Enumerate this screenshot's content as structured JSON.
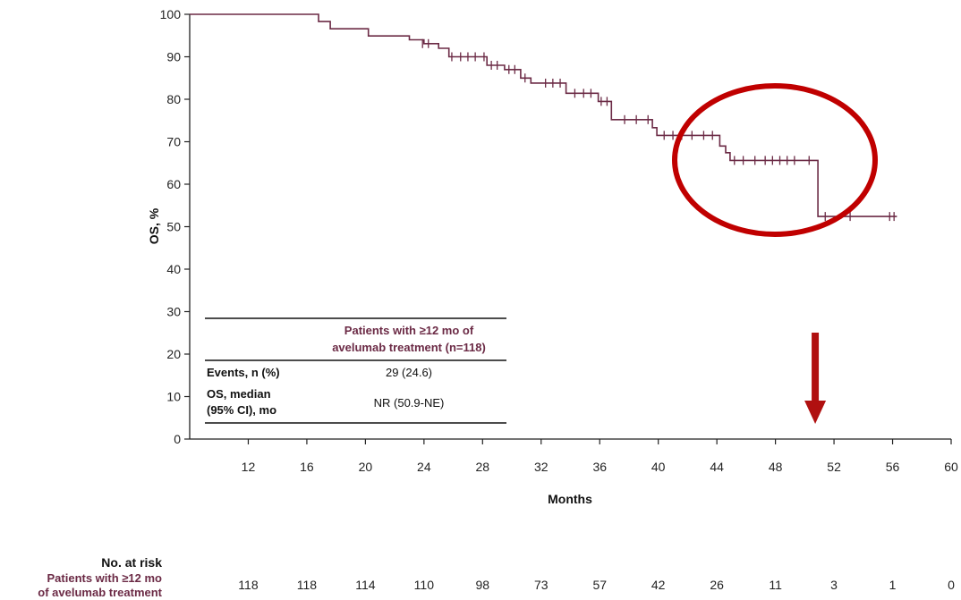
{
  "chart_data": {
    "type": "line",
    "xlabel": "Months",
    "ylabel": "OS, %",
    "xlim": [
      8,
      60
    ],
    "ylim": [
      0,
      100
    ],
    "x_ticks": [
      12,
      16,
      20,
      24,
      28,
      32,
      36,
      40,
      44,
      48,
      52,
      56,
      60
    ],
    "y_ticks": [
      0,
      10,
      20,
      30,
      40,
      50,
      60,
      70,
      80,
      90,
      100
    ],
    "grid": false,
    "series": [
      {
        "name": "Patients with ≥12 mo of avelumab treatment (n=118)",
        "color": "#6b2a45",
        "steps": [
          [
            8,
            100
          ],
          [
            16.8,
            100
          ],
          [
            16.8,
            98.3
          ],
          [
            17.6,
            98.3
          ],
          [
            17.6,
            96.6
          ],
          [
            20.2,
            96.6
          ],
          [
            20.2,
            94.9
          ],
          [
            23.0,
            94.9
          ],
          [
            23.0,
            94.0
          ],
          [
            24.0,
            94.0
          ],
          [
            24.0,
            93.1
          ],
          [
            25.0,
            93.1
          ],
          [
            25.0,
            92.0
          ],
          [
            25.7,
            92.0
          ],
          [
            25.7,
            90.0
          ],
          [
            28.3,
            90.0
          ],
          [
            28.3,
            88.0
          ],
          [
            29.5,
            88.0
          ],
          [
            29.5,
            87.0
          ],
          [
            30.6,
            87.0
          ],
          [
            30.6,
            85.0
          ],
          [
            31.3,
            85.0
          ],
          [
            31.3,
            83.8
          ],
          [
            33.7,
            83.8
          ],
          [
            33.7,
            81.4
          ],
          [
            35.9,
            81.4
          ],
          [
            35.9,
            79.5
          ],
          [
            36.8,
            79.5
          ],
          [
            36.8,
            75.2
          ],
          [
            39.6,
            75.2
          ],
          [
            39.6,
            73.3
          ],
          [
            39.9,
            73.3
          ],
          [
            39.9,
            71.5
          ],
          [
            44.2,
            71.5
          ],
          [
            44.2,
            69.0
          ],
          [
            44.6,
            69.0
          ],
          [
            44.6,
            67.4
          ],
          [
            44.9,
            67.4
          ],
          [
            44.9,
            65.6
          ],
          [
            50.9,
            65.6
          ],
          [
            50.9,
            52.4
          ],
          [
            56.3,
            52.4
          ]
        ],
        "censored": [
          [
            23.9,
            93.1
          ],
          [
            24.3,
            93.1
          ],
          [
            25.9,
            90.0
          ],
          [
            26.5,
            90.0
          ],
          [
            27.0,
            90.0
          ],
          [
            27.5,
            90.0
          ],
          [
            28.1,
            90.0
          ],
          [
            28.6,
            88.0
          ],
          [
            29.0,
            88.0
          ],
          [
            29.8,
            87.0
          ],
          [
            30.2,
            87.0
          ],
          [
            30.9,
            85.0
          ],
          [
            32.3,
            83.8
          ],
          [
            32.8,
            83.8
          ],
          [
            33.3,
            83.8
          ],
          [
            34.3,
            81.4
          ],
          [
            34.9,
            81.4
          ],
          [
            35.4,
            81.4
          ],
          [
            36.1,
            79.5
          ],
          [
            36.5,
            79.5
          ],
          [
            37.7,
            75.2
          ],
          [
            38.5,
            75.2
          ],
          [
            39.3,
            75.2
          ],
          [
            40.4,
            71.5
          ],
          [
            41.0,
            71.5
          ],
          [
            41.6,
            71.5
          ],
          [
            42.3,
            71.5
          ],
          [
            43.1,
            71.5
          ],
          [
            43.7,
            71.5
          ],
          [
            45.2,
            65.6
          ],
          [
            45.8,
            65.6
          ],
          [
            46.6,
            65.6
          ],
          [
            47.3,
            65.6
          ],
          [
            47.8,
            65.6
          ],
          [
            48.3,
            65.6
          ],
          [
            48.8,
            65.6
          ],
          [
            49.3,
            65.6
          ],
          [
            50.3,
            65.6
          ],
          [
            51.4,
            52.4
          ],
          [
            53.1,
            52.4
          ],
          [
            55.8,
            52.4
          ],
          [
            56.1,
            52.4
          ]
        ]
      }
    ],
    "legend_table": {
      "header_line1": "Patients with ≥12 mo of",
      "header_line2": "avelumab treatment (n=118)",
      "row1_label": "Events, n (%)",
      "row1_value": "29 (24.6)",
      "row2_label_line1": "OS, median",
      "row2_label_line2": "(95% CI), mo",
      "row2_value": "NR (50.9-NE)"
    },
    "at_risk": {
      "header": "No. at risk",
      "series_label_line1": "Patients with ≥12 mo",
      "series_label_line2": "of avelumab treatment",
      "x": [
        12,
        16,
        20,
        24,
        28,
        32,
        36,
        40,
        44,
        48,
        52,
        56,
        60
      ],
      "counts": [
        "118",
        "118",
        "114",
        "110",
        "98",
        "73",
        "57",
        "42",
        "26",
        "11",
        "3",
        "1",
        "0"
      ]
    },
    "annotations": [
      {
        "type": "ellipse",
        "color": "#c00000",
        "center": [
          48,
          65
        ]
      },
      {
        "type": "down-arrow",
        "color": "#b01010",
        "x": 50.9
      }
    ]
  },
  "colors": {
    "series": "#6b2a45",
    "annotation": "#c00000",
    "axis": "#222222"
  }
}
